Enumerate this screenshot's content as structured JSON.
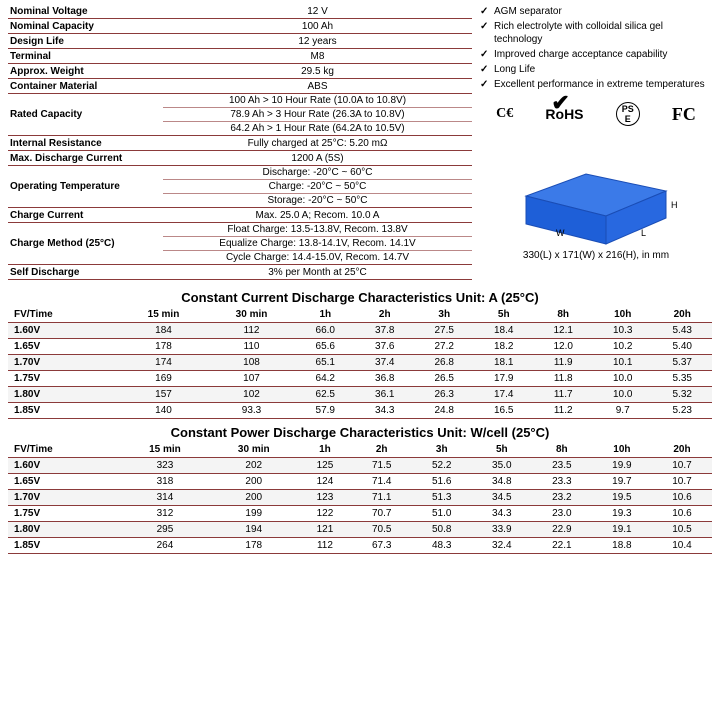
{
  "specs": [
    {
      "label": "Nominal Voltage",
      "value": "12 V"
    },
    {
      "label": "Nominal Capacity",
      "value": "100 Ah"
    },
    {
      "label": "Design Life",
      "value": "12 years"
    },
    {
      "label": "Terminal",
      "value": "M8"
    },
    {
      "label": "Approx. Weight",
      "value": "29.5 kg"
    },
    {
      "label": "Container Material",
      "value": "ABS"
    }
  ],
  "rated_capacity_label": "Rated Capacity",
  "rated_capacity": [
    "100 Ah > 10 Hour Rate (10.0A to 10.8V)",
    "78.9 Ah > 3 Hour Rate (26.3A to 10.8V)",
    "64.2 Ah > 1 Hour Rate (64.2A to 10.5V)"
  ],
  "internal_res": {
    "label": "Internal Resistance",
    "value": "Fully charged at 25°C: 5.20 mΩ"
  },
  "max_discharge": {
    "label": "Max. Discharge Current",
    "value": "1200 A (5S)"
  },
  "op_temp_label": "Operating Temperature",
  "op_temp": [
    "Discharge: -20°C ~ 60°C",
    "Charge: -20°C ~ 50°C",
    "Storage: -20°C ~ 50°C"
  ],
  "charge_current": {
    "label": "Charge Current",
    "value": "Max. 25.0 A; Recom. 10.0 A"
  },
  "charge_method_label": "Charge Method (25°C)",
  "charge_method": [
    "Float Charge: 13.5-13.8V, Recom. 13.8V",
    "Equalize Charge: 13.8-14.1V, Recom. 14.1V",
    "Cycle Charge: 14.4-15.0V, Recom. 14.7V"
  ],
  "self_discharge": {
    "label": "Self Discharge",
    "value": "3% per Month at 25°C"
  },
  "features": [
    "AGM separator",
    "Rich electrolyte with colloidal silica gel technology",
    "Improved charge acceptance capability",
    "Long Life",
    "Excellent performance in extreme temperatures"
  ],
  "certs": [
    "CE",
    "RoHS",
    "PSE",
    "FC"
  ],
  "dim_labels": {
    "L": "L",
    "W": "W",
    "H": "H"
  },
  "dim_text": "330(L) x 171(W) x 216(H), in mm",
  "box_color": "#1e5fd8",
  "table1_title": "Constant Current Discharge Characteristics Unit: A (25°C)",
  "table2_title": "Constant Power Discharge Characteristics Unit: W/cell (25°C)",
  "headers": [
    "FV/Time",
    "15 min",
    "30 min",
    "1h",
    "2h",
    "3h",
    "5h",
    "8h",
    "10h",
    "20h"
  ],
  "table1": [
    [
      "1.60V",
      "184",
      "112",
      "66.0",
      "37.8",
      "27.5",
      "18.4",
      "12.1",
      "10.3",
      "5.43"
    ],
    [
      "1.65V",
      "178",
      "110",
      "65.6",
      "37.6",
      "27.2",
      "18.2",
      "12.0",
      "10.2",
      "5.40"
    ],
    [
      "1.70V",
      "174",
      "108",
      "65.1",
      "37.4",
      "26.8",
      "18.1",
      "11.9",
      "10.1",
      "5.37"
    ],
    [
      "1.75V",
      "169",
      "107",
      "64.2",
      "36.8",
      "26.5",
      "17.9",
      "11.8",
      "10.0",
      "5.35"
    ],
    [
      "1.80V",
      "157",
      "102",
      "62.5",
      "36.1",
      "26.3",
      "17.4",
      "11.7",
      "10.0",
      "5.32"
    ],
    [
      "1.85V",
      "140",
      "93.3",
      "57.9",
      "34.3",
      "24.8",
      "16.5",
      "11.2",
      "9.7",
      "5.23"
    ]
  ],
  "table2": [
    [
      "1.60V",
      "323",
      "202",
      "125",
      "71.5",
      "52.2",
      "35.0",
      "23.5",
      "19.9",
      "10.7"
    ],
    [
      "1.65V",
      "318",
      "200",
      "124",
      "71.4",
      "51.6",
      "34.8",
      "23.3",
      "19.7",
      "10.7"
    ],
    [
      "1.70V",
      "314",
      "200",
      "123",
      "71.1",
      "51.3",
      "34.5",
      "23.2",
      "19.5",
      "10.6"
    ],
    [
      "1.75V",
      "312",
      "199",
      "122",
      "70.7",
      "51.0",
      "34.3",
      "23.0",
      "19.3",
      "10.6"
    ],
    [
      "1.80V",
      "295",
      "194",
      "121",
      "70.5",
      "50.8",
      "33.9",
      "22.9",
      "19.1",
      "10.5"
    ],
    [
      "1.85V",
      "264",
      "178",
      "112",
      "67.3",
      "48.3",
      "32.4",
      "22.1",
      "18.8",
      "10.4"
    ]
  ]
}
